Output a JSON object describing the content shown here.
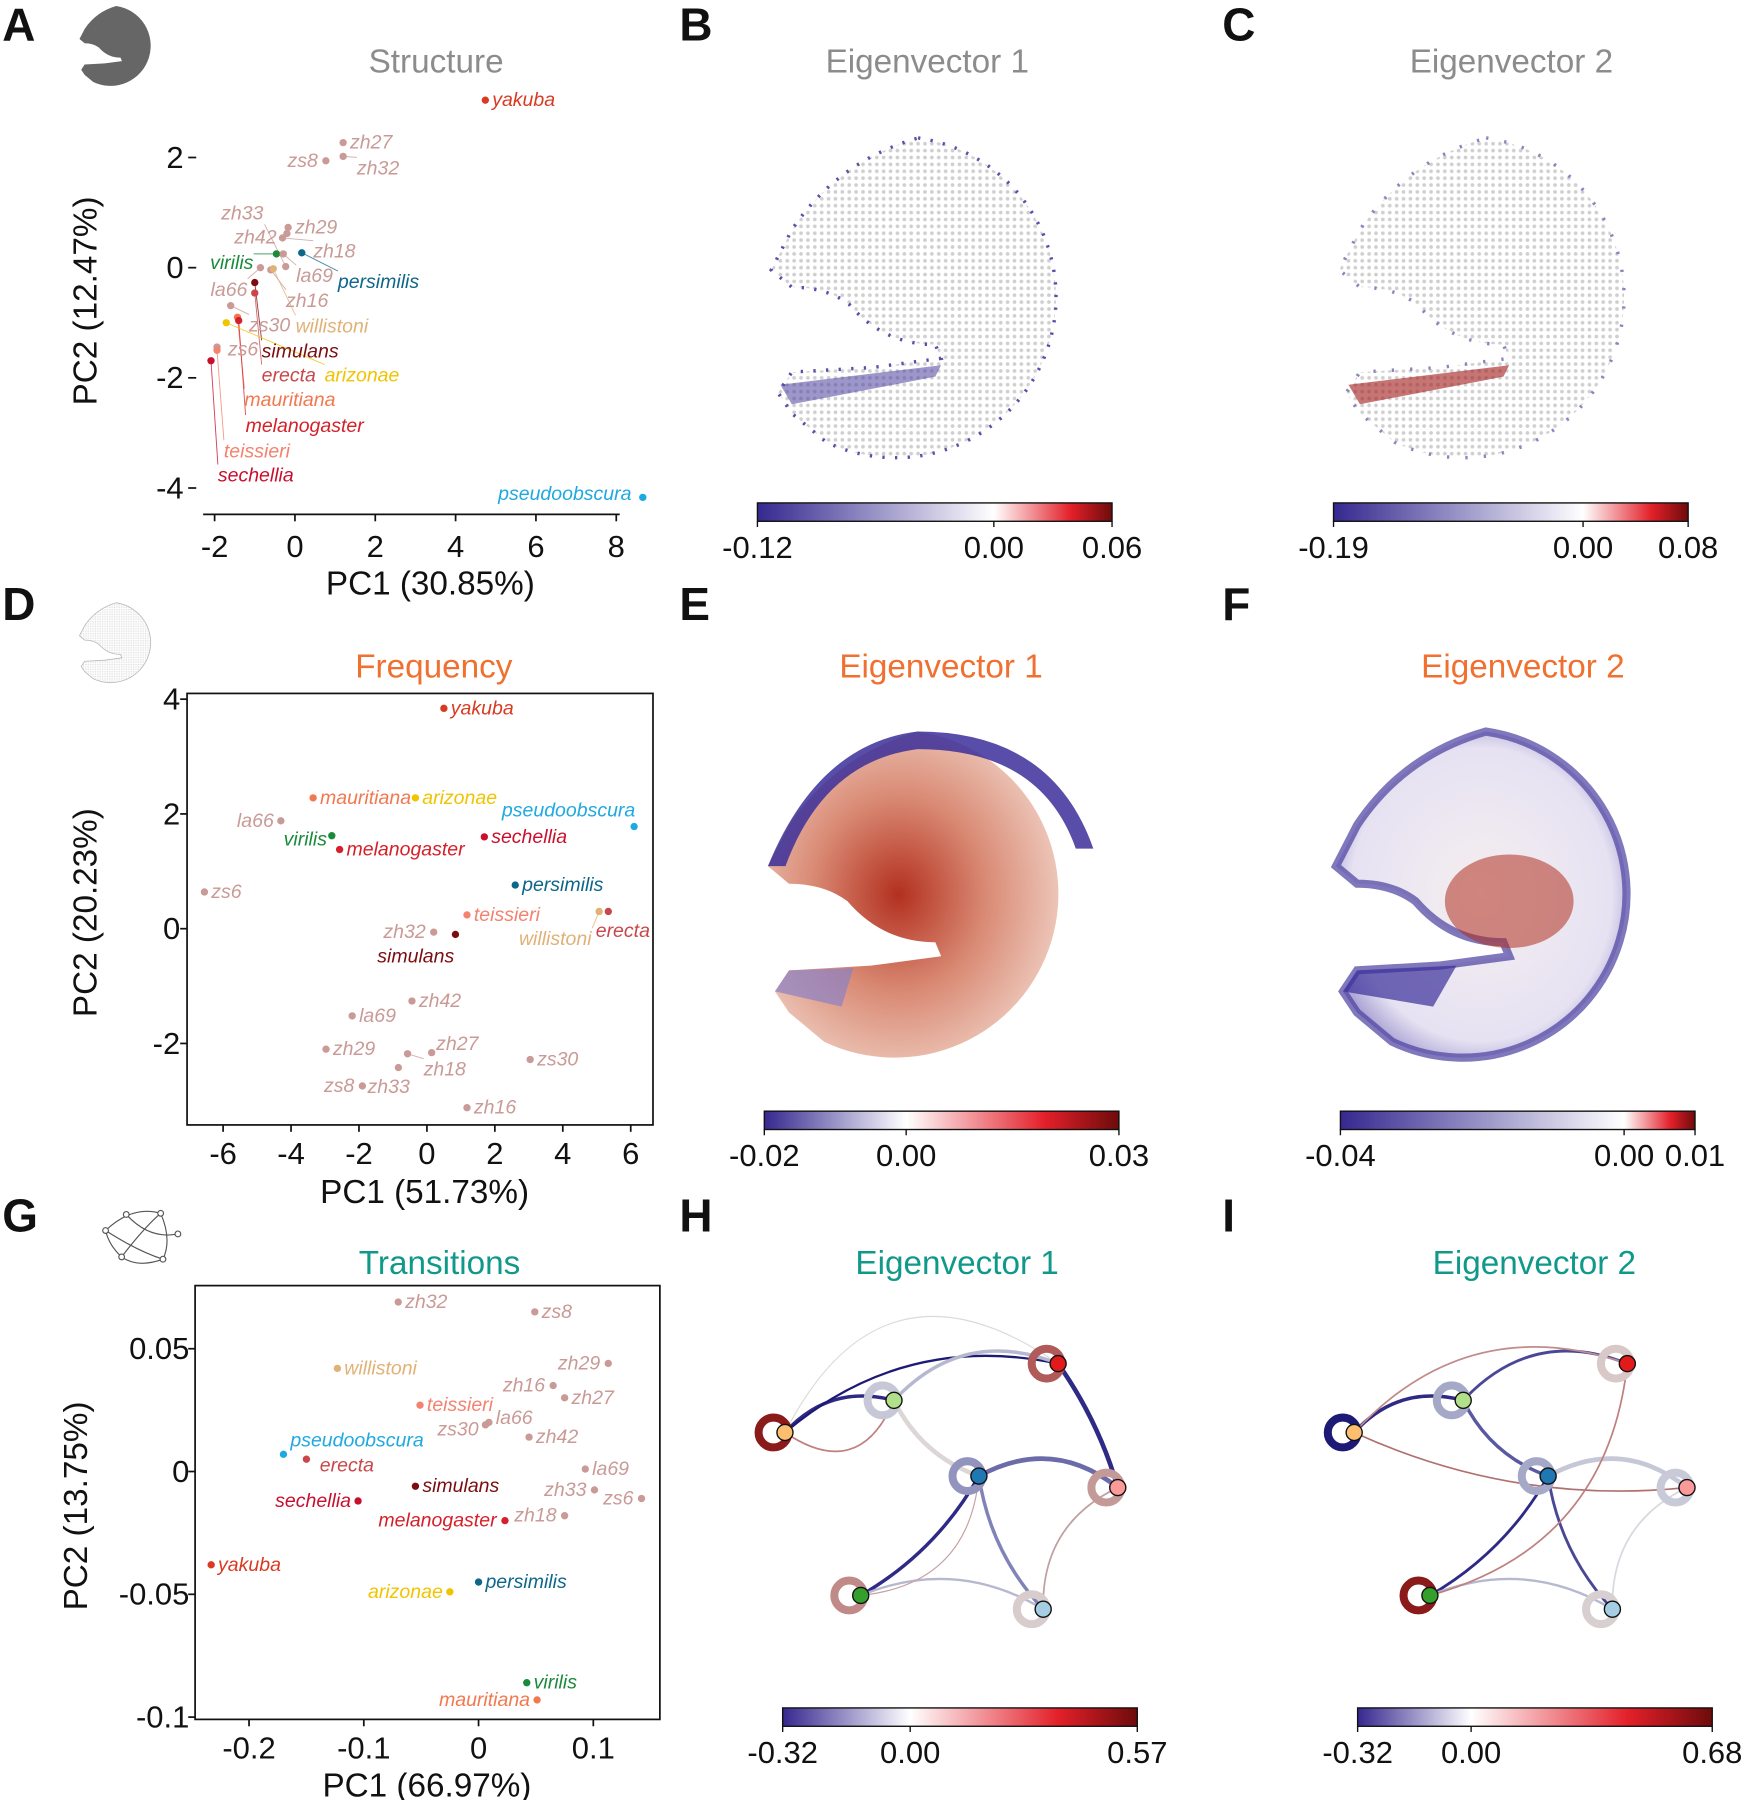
{
  "panels": {
    "A": {
      "letter": "A",
      "title": "Structure",
      "xlabel": "PC1 (30.85%)",
      "ylabel": "PC2 (12.47%)"
    },
    "B": {
      "letter": "B",
      "title": "Eigenvector 1"
    },
    "C": {
      "letter": "C",
      "title": "Eigenvector 2"
    },
    "D": {
      "letter": "D",
      "title": "Frequency",
      "xlabel": "PC1 (51.73%)",
      "ylabel": "PC2 (20.23%)"
    },
    "E": {
      "letter": "E",
      "title": "Eigenvector 1"
    },
    "F": {
      "letter": "F",
      "title": "Eigenvector 2"
    },
    "G": {
      "letter": "G",
      "title": "Transitions",
      "xlabel": "PC1 (66.97%)",
      "ylabel": "PC2 (13.75%)"
    },
    "H": {
      "letter": "H",
      "title": "Eigenvector 1"
    },
    "I": {
      "letter": "I",
      "title": "Eigenvector 2"
    }
  },
  "colors": {
    "structure_title": "#8c8c8c",
    "frequency_title": "#f07030",
    "transitions_title": "#10998a",
    "cb_neg": "#35288f",
    "cb_mid": "#ffffff",
    "cb_pos": "#e3202a",
    "cb_max": "#6e0b0b",
    "species": {
      "yakuba": "#d93a22",
      "pseudoobscura": "#1fa9e1",
      "virilis": "#1b8a3b",
      "persimilis": "#0e668a",
      "willistoni": "#e0b276",
      "simulans": "#7b0d10",
      "erecta": "#c9474b",
      "mauritiana": "#f2784f",
      "melanogaster": "#d5202a",
      "arizonae": "#f1c400",
      "teissieri": "#f3826f",
      "sechellia": "#c8102e",
      "strain": "#c99a96"
    }
  },
  "chart_data": [
    {
      "panel": "A",
      "type": "scatter",
      "title": "Structure",
      "xlabel": "PC1 (30.85%)",
      "ylabel": "PC2 (12.47%)",
      "xticks": [
        -2,
        0,
        2,
        4,
        6,
        8
      ],
      "yticks": [
        2,
        0,
        -2,
        -4
      ],
      "xlim": [
        -2.3,
        8.4
      ],
      "ylim": [
        -4.5,
        3.5
      ],
      "points": [
        {
          "name": "yakuba",
          "x": 4.74,
          "y": 3.04
        },
        {
          "name": "zh27",
          "x": 1.2,
          "y": 2.27
        },
        {
          "name": "zh32",
          "x": 1.2,
          "y": 2.02
        },
        {
          "name": "zs8",
          "x": 0.77,
          "y": 1.94
        },
        {
          "name": "zh29",
          "x": -0.17,
          "y": 0.73
        },
        {
          "name": "zh42",
          "x": -0.2,
          "y": 0.62
        },
        {
          "name": "zh18",
          "x": -0.31,
          "y": 0.54
        },
        {
          "name": "virilis",
          "x": -0.46,
          "y": 0.25
        },
        {
          "name": "la69",
          "x": -0.29,
          "y": 0.25
        },
        {
          "name": "persimilis",
          "x": 0.17,
          "y": 0.27
        },
        {
          "name": "la66",
          "x": -0.86,
          "y": 0.0
        },
        {
          "name": "zh16",
          "x": -0.6,
          "y": -0.04
        },
        {
          "name": "willistoni",
          "x": -0.54,
          "y": -0.02
        },
        {
          "name": "zh33",
          "x": -0.23,
          "y": 0.02
        },
        {
          "name": "simulans",
          "x": -1.0,
          "y": -0.27
        },
        {
          "name": "erecta",
          "x": -1.0,
          "y": -0.46
        },
        {
          "name": "zs30",
          "x": -1.6,
          "y": -0.69
        },
        {
          "name": "mauritiana",
          "x": -1.43,
          "y": -0.9
        },
        {
          "name": "melanogaster",
          "x": -1.4,
          "y": -0.96
        },
        {
          "name": "arizonae",
          "x": -1.71,
          "y": -1.0
        },
        {
          "name": "zs6",
          "x": -1.94,
          "y": -1.44
        },
        {
          "name": "teissieri",
          "x": -1.94,
          "y": -1.5
        },
        {
          "name": "sechellia",
          "x": -2.09,
          "y": -1.69
        },
        {
          "name": "pseudoobscura",
          "x": 8.66,
          "y": -4.17
        }
      ]
    },
    {
      "panel": "D",
      "type": "scatter",
      "title": "Frequency",
      "xlabel": "PC1 (51.73%)",
      "ylabel": "PC2 (20.23%)",
      "xticks": [
        -6,
        -4,
        -2,
        0,
        2,
        4,
        6
      ],
      "yticks": [
        4,
        2,
        0,
        -2
      ],
      "xlim": [
        -7.1,
        6.6
      ],
      "ylim": [
        -3.4,
        4.1
      ],
      "points": [
        {
          "name": "yakuba",
          "x": 0.5,
          "y": 3.84
        },
        {
          "name": "mauritiana",
          "x": -3.35,
          "y": 2.28
        },
        {
          "name": "arizonae",
          "x": -0.34,
          "y": 2.28
        },
        {
          "name": "la66",
          "x": -4.3,
          "y": 1.88
        },
        {
          "name": "virilis",
          "x": -2.8,
          "y": 1.62
        },
        {
          "name": "sechellia",
          "x": 1.69,
          "y": 1.6
        },
        {
          "name": "pseudoobscura",
          "x": 6.1,
          "y": 1.78
        },
        {
          "name": "melanogaster",
          "x": -2.57,
          "y": 1.38
        },
        {
          "name": "zs6",
          "x": -6.55,
          "y": 0.64
        },
        {
          "name": "persimilis",
          "x": 2.6,
          "y": 0.76
        },
        {
          "name": "teissieri",
          "x": 1.18,
          "y": 0.24
        },
        {
          "name": "willistoni",
          "x": 5.07,
          "y": 0.3
        },
        {
          "name": "erecta",
          "x": 5.34,
          "y": 0.3
        },
        {
          "name": "zh32",
          "x": 0.2,
          "y": -0.06
        },
        {
          "name": "simulans",
          "x": 0.84,
          "y": -0.1
        },
        {
          "name": "zh42",
          "x": -0.44,
          "y": -1.26
        },
        {
          "name": "la69",
          "x": -2.2,
          "y": -1.52
        },
        {
          "name": "zh29",
          "x": -2.97,
          "y": -2.1
        },
        {
          "name": "zh18",
          "x": -0.57,
          "y": -2.18
        },
        {
          "name": "zh27",
          "x": 0.14,
          "y": -2.16
        },
        {
          "name": "zh33",
          "x": -0.84,
          "y": -2.42
        },
        {
          "name": "zs30",
          "x": 3.04,
          "y": -2.28
        },
        {
          "name": "zs8",
          "x": -1.9,
          "y": -2.74
        },
        {
          "name": "zh16",
          "x": 1.18,
          "y": -3.12
        }
      ]
    },
    {
      "panel": "G",
      "type": "scatter",
      "title": "Transitions",
      "xlabel": "PC1 (66.97%)",
      "ylabel": "PC2 (13.75%)",
      "xticks": [
        -0.2,
        -0.1,
        0,
        0.1
      ],
      "yticks": [
        0.05,
        0,
        -0.05,
        -0.1
      ],
      "xlim": [
        -0.247,
        0.158
      ],
      "ylim": [
        -0.102,
        0.075
      ],
      "points": [
        {
          "name": "zh32",
          "x": -0.07,
          "y": 0.069
        },
        {
          "name": "zs8",
          "x": 0.049,
          "y": 0.065
        },
        {
          "name": "zh29",
          "x": 0.113,
          "y": 0.044
        },
        {
          "name": "willistoni",
          "x": -0.123,
          "y": 0.042
        },
        {
          "name": "zh16",
          "x": 0.065,
          "y": 0.035
        },
        {
          "name": "teissieri",
          "x": -0.051,
          "y": 0.027
        },
        {
          "name": "zh27",
          "x": 0.075,
          "y": 0.03
        },
        {
          "name": "la66",
          "x": 0.009,
          "y": 0.02
        },
        {
          "name": "zs30",
          "x": 0.006,
          "y": 0.019
        },
        {
          "name": "zh42",
          "x": 0.044,
          "y": 0.014
        },
        {
          "name": "pseudoobscura",
          "x": -0.17,
          "y": 0.007
        },
        {
          "name": "erecta",
          "x": -0.15,
          "y": 0.005
        },
        {
          "name": "la69",
          "x": 0.093,
          "y": 0.001
        },
        {
          "name": "simulans",
          "x": -0.055,
          "y": -0.006
        },
        {
          "name": "zh33",
          "x": 0.101,
          "y": -0.0075
        },
        {
          "name": "zs6",
          "x": 0.142,
          "y": -0.011
        },
        {
          "name": "sechellia",
          "x": -0.105,
          "y": -0.012
        },
        {
          "name": "melanogaster",
          "x": 0.023,
          "y": -0.02
        },
        {
          "name": "zh18",
          "x": 0.075,
          "y": -0.018
        },
        {
          "name": "yakuba",
          "x": -0.233,
          "y": -0.038
        },
        {
          "name": "persimilis",
          "x": 0.0,
          "y": -0.045
        },
        {
          "name": "arizonae",
          "x": -0.025,
          "y": -0.049
        },
        {
          "name": "virilis",
          "x": 0.042,
          "y": -0.086
        },
        {
          "name": "mauritiana",
          "x": 0.051,
          "y": -0.093
        }
      ]
    },
    {
      "panel": "B",
      "type": "heatmap",
      "colorbar": {
        "min": -0.12,
        "max": 0.06,
        "labels": [
          "-0.12",
          "0.00",
          "0.06"
        ]
      }
    },
    {
      "panel": "C",
      "type": "heatmap",
      "colorbar": {
        "min": -0.19,
        "max": 0.08,
        "labels": [
          "-0.19",
          "0.00",
          "0.08"
        ]
      }
    },
    {
      "panel": "E",
      "type": "heatmap",
      "colorbar": {
        "min": -0.02,
        "max": 0.03,
        "labels": [
          "-0.02",
          "0.00",
          "0.03"
        ]
      }
    },
    {
      "panel": "F",
      "type": "heatmap",
      "colorbar": {
        "min": -0.04,
        "max": 0.01,
        "labels": [
          "-0.04",
          "0.00",
          "0.01"
        ]
      }
    },
    {
      "panel": "H",
      "type": "network",
      "colorbar": {
        "min": -0.32,
        "max": 0.57,
        "labels": [
          "-0.32",
          "0.00",
          "0.57"
        ]
      }
    },
    {
      "panel": "I",
      "type": "network",
      "colorbar": {
        "min": -0.32,
        "max": 0.68,
        "labels": [
          "-0.32",
          "0.00",
          "0.68"
        ]
      }
    }
  ]
}
